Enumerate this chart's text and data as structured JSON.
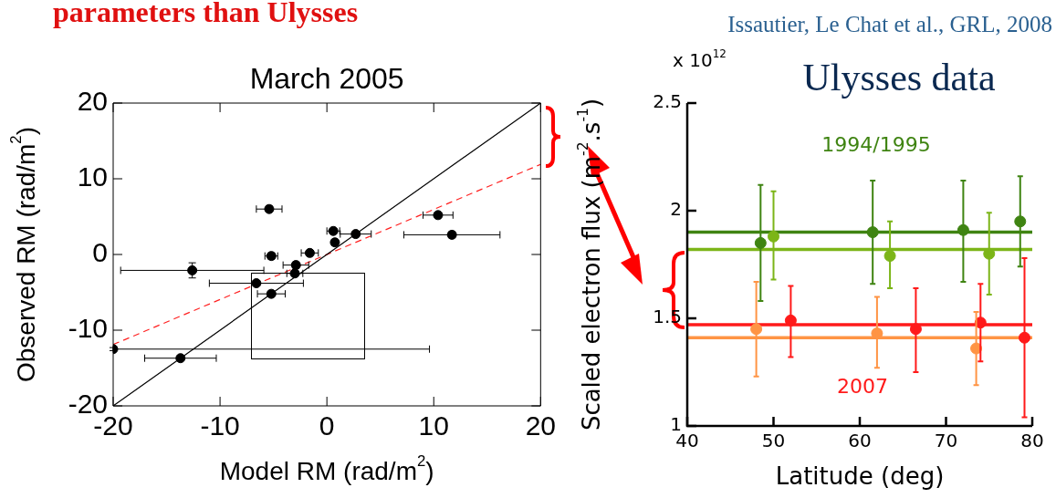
{
  "chart_data": [
    {
      "type": "scatter",
      "title": "March 2005",
      "xlabel": "Model RM (rad/m$^{2}$)",
      "ylabel": "Observed RM (rad/m$^{2}$)",
      "annotations": [
        "parameters than Ulysses"
      ],
      "xlim": [
        -20,
        20
      ],
      "ylim": [
        -20,
        20
      ],
      "xticks": [
        -20,
        -10,
        0,
        10,
        20
      ],
      "yticks": [
        -20,
        -10,
        0,
        10,
        20
      ],
      "grid": false,
      "marker": "circle",
      "series": [
        {
          "type": "scatter",
          "color": "#000000",
          "x": [
            -5.4,
            0.6,
            2.7,
            0.75,
            -1.6,
            -5.2,
            -2.9,
            -3.0,
            -12.6,
            -6.6,
            -5.2,
            10.4,
            11.7,
            -20,
            -13.7
          ],
          "values": [
            6.0,
            3.1,
            2.7,
            1.6,
            0.2,
            -0.2,
            -1.4,
            -2.5,
            -2.1,
            -3.8,
            -5.2,
            5.2,
            2.6,
            -12.5,
            -13.7
          ],
          "errors": [
            0.4,
            0.3,
            0.2,
            0.4,
            0.3,
            0.4,
            0.4,
            0.3,
            1.0,
            0.3,
            0.2,
            0.2,
            0.4,
            0.2,
            0.2
          ],
          "xerrors": [
            1.2,
            0.6,
            1.45,
            0.2,
            0.8,
            0.6,
            1.2,
            0.75,
            6.7,
            4.4,
            1.3,
            1.4,
            4.5,
            [
              -20,
              9.6
            ],
            3.35
          ]
        },
        {
          "type": "line",
          "marker": "none",
          "color": "#000000",
          "x": [
            -20,
            20
          ],
          "values": [
            -20,
            20
          ]
        },
        {
          "type": "line",
          "marker": "none",
          "line_style": "dashed",
          "color": "#ff2020",
          "x": [
            -20,
            20
          ],
          "values": [
            -11.9,
            11.9
          ]
        }
      ]
    },
    {
      "type": "scatter",
      "title": "Ulysses data",
      "xlabel": "Latitude (deg)",
      "ylabel": "Scaled electron flux (m$^{-2}$.s$^{-1}$)",
      "annotations": [
        "x 10$^{12}$",
        "Issautier, Le Chat et al., GRL, 2008",
        "1994/1995",
        "2007"
      ],
      "xlim": [
        40,
        80
      ],
      "ylim": [
        1,
        2.5
      ],
      "xticks": [
        40,
        50,
        60,
        70,
        80
      ],
      "yticks": [
        1,
        1.5,
        2,
        2.5
      ],
      "grid": false,
      "marker": "circle",
      "series": [
        {
          "type": "scatter",
          "color": "#3f8412",
          "x": [
            48.5,
            61.5,
            72.0,
            78.6
          ],
          "values": [
            1.85,
            1.9,
            1.91,
            1.95
          ],
          "errors": [
            [
              1.58,
              2.12
            ],
            [
              1.66,
              2.14
            ],
            [
              1.67,
              2.14
            ],
            [
              1.74,
              2.16
            ]
          ]
        },
        {
          "type": "scatter",
          "color": "#7cb518",
          "x": [
            50.0,
            63.5,
            75.0
          ],
          "values": [
            1.88,
            1.79,
            1.8
          ],
          "errors": [
            [
              1.68,
              2.09
            ],
            [
              1.64,
              1.95
            ],
            [
              1.61,
              1.99
            ]
          ]
        },
        {
          "type": "scatter",
          "color": "#ff1a1a",
          "x": [
            52.0,
            66.5,
            74.0,
            79.1
          ],
          "values": [
            1.49,
            1.45,
            1.48,
            1.41
          ],
          "errors": [
            [
              1.32,
              1.65
            ],
            [
              1.25,
              1.64
            ],
            [
              1.3,
              1.66
            ],
            [
              1.04,
              1.78
            ]
          ]
        },
        {
          "type": "scatter",
          "color": "#ff9444",
          "x": [
            48.0,
            62.0,
            73.5
          ],
          "values": [
            1.45,
            1.43,
            1.36
          ],
          "errors": [
            [
              1.23,
              1.67
            ],
            [
              1.27,
              1.6
            ],
            [
              1.19,
              1.53
            ]
          ]
        }
      ],
      "ref_lines": [
        {
          "axis": "y",
          "value": 1.9,
          "color": "#3f8412"
        },
        {
          "axis": "y",
          "value": 1.82,
          "color": "#7cb518"
        },
        {
          "axis": "y",
          "value": 1.47,
          "color": "#ff1a1a"
        },
        {
          "axis": "y",
          "value": 1.41,
          "color": "#ff9444"
        }
      ]
    }
  ]
}
